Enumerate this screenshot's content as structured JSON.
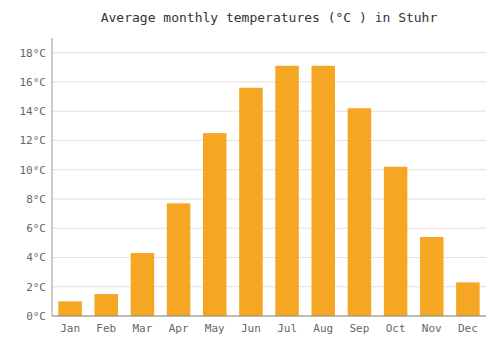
{
  "chart_data": {
    "type": "bar",
    "title": "Average monthly temperatures (°C ) in Stuhr",
    "categories": [
      "Jan",
      "Feb",
      "Mar",
      "Apr",
      "May",
      "Jun",
      "Jul",
      "Aug",
      "Sep",
      "Oct",
      "Nov",
      "Dec"
    ],
    "values": [
      1.0,
      1.5,
      4.3,
      7.7,
      12.5,
      15.6,
      17.1,
      17.1,
      14.2,
      10.2,
      5.4,
      2.3
    ],
    "color": "#F5A623",
    "ylim": [
      0,
      19
    ],
    "yticks": [
      {
        "value": 0,
        "label": "0°C"
      },
      {
        "value": 2,
        "label": "2°C"
      },
      {
        "value": 4,
        "label": "4°C"
      },
      {
        "value": 6,
        "label": "6°C"
      },
      {
        "value": 8,
        "label": "8°C"
      },
      {
        "value": 10,
        "label": "10°C"
      },
      {
        "value": 12,
        "label": "12°C"
      },
      {
        "value": 14,
        "label": "14°C"
      },
      {
        "value": 16,
        "label": "16°C"
      },
      {
        "value": 18,
        "label": "18°C"
      }
    ],
    "grid": true
  }
}
